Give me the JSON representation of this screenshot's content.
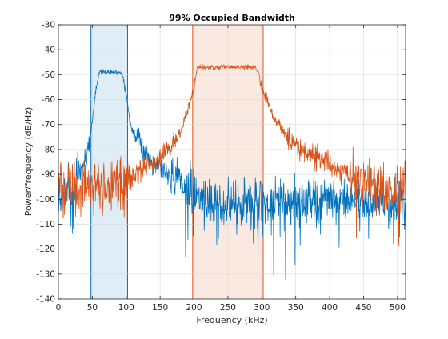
{
  "chart_data": {
    "type": "line",
    "title": "99% Occupied Bandwidth",
    "xlabel": "Frequency (kHz)",
    "ylabel": "Power/frequency (dB/Hz)",
    "xlim": [
      0,
      512
    ],
    "ylim": [
      -140,
      -30
    ],
    "xticks": [
      0,
      50,
      100,
      150,
      200,
      250,
      300,
      350,
      400,
      450,
      500
    ],
    "yticks": [
      -30,
      -40,
      -50,
      -60,
      -70,
      -80,
      -90,
      -100,
      -110,
      -120,
      -130,
      -140
    ],
    "grid": true,
    "legend": false,
    "series": [
      {
        "color": "#0072BD",
        "x": [
          0,
          10,
          20,
          30,
          40,
          45,
          50,
          55,
          60,
          70,
          80,
          90,
          95,
          100,
          105,
          110,
          120,
          130,
          140,
          150,
          160,
          170,
          180,
          190,
          200,
          210,
          220,
          250,
          300,
          350,
          400,
          450,
          512
        ],
        "y": [
          -101,
          -98,
          -95,
          -90,
          -84,
          -77,
          -69,
          -56,
          -49,
          -49,
          -49,
          -49,
          -50,
          -58,
          -68,
          -73,
          -78,
          -82,
          -85,
          -87,
          -89,
          -91,
          -93,
          -95,
          -97,
          -99,
          -101,
          -101,
          -101,
          -101,
          -101,
          -101,
          -101
        ]
      },
      {
        "color": "#D95319",
        "x": [
          0,
          20,
          40,
          60,
          80,
          100,
          120,
          140,
          150,
          160,
          170,
          180,
          190,
          200,
          205,
          210,
          250,
          290,
          295,
          300,
          310,
          320,
          340,
          360,
          380,
          400,
          420,
          440,
          460,
          480,
          512
        ],
        "y": [
          -95,
          -95,
          -95,
          -95,
          -93,
          -91,
          -88,
          -86,
          -84,
          -81,
          -77,
          -73,
          -65,
          -55,
          -47,
          -47,
          -47,
          -47,
          -49,
          -55,
          -62,
          -68,
          -76,
          -80,
          -83,
          -86,
          -89,
          -91,
          -93,
          -95,
          -98
        ]
      }
    ],
    "bands": [
      {
        "x": [
          48,
          102
        ],
        "color": "#0072BD"
      },
      {
        "x": [
          198,
          302
        ],
        "color": "#D95319"
      }
    ]
  }
}
